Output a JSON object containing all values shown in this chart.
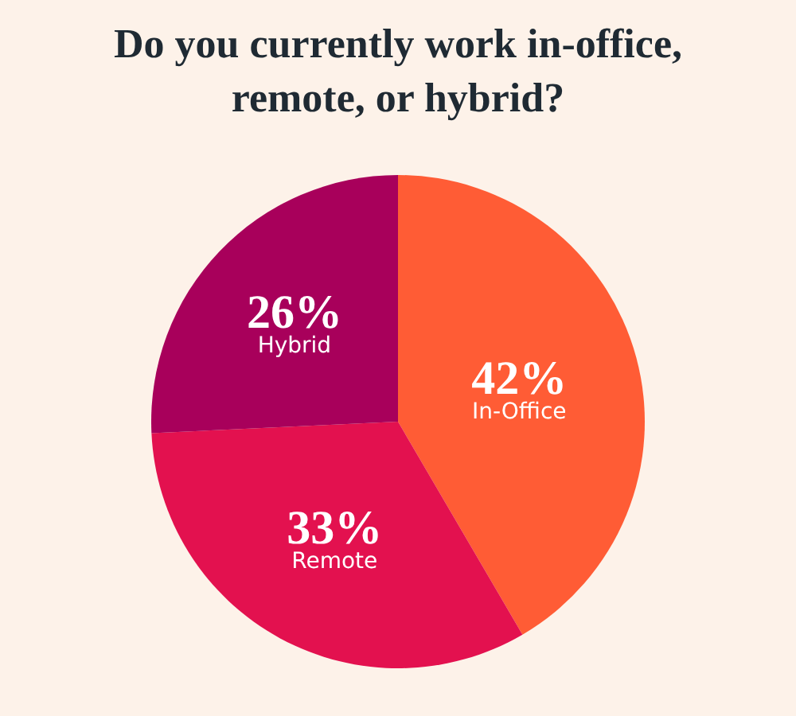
{
  "chart_data": {
    "type": "pie",
    "title": "Do you currently work in-office,\nremote, or hybrid?",
    "categories": [
      "In-Office",
      "Remote",
      "Hybrid"
    ],
    "values": [
      42,
      33,
      26
    ],
    "value_labels": [
      "42%",
      "33%",
      "26%"
    ],
    "colors": [
      "#ff5c35",
      "#e3114f",
      "#a8005b"
    ],
    "legend": false
  }
}
